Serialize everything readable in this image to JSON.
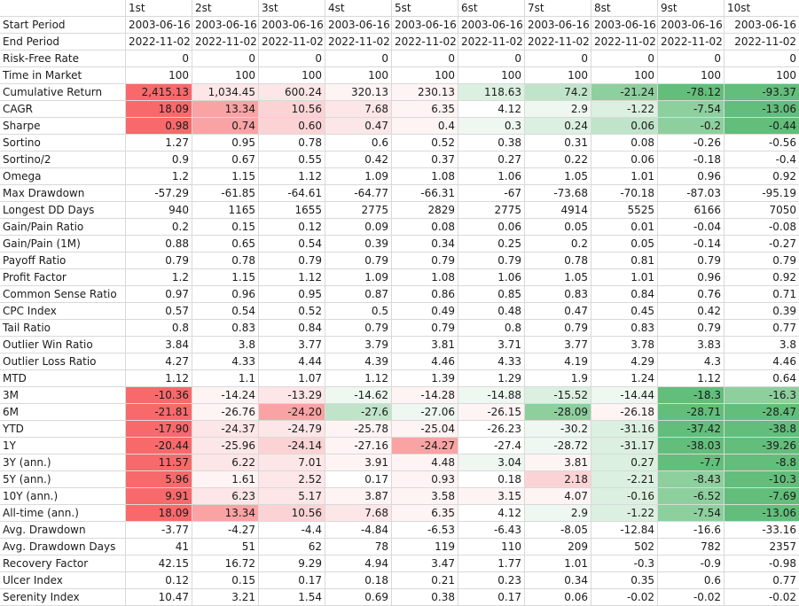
{
  "columns": [
    "",
    "1st",
    "2st",
    "3st",
    "4st",
    "5st",
    "6st",
    "7st",
    "8st",
    "9st",
    "10st"
  ],
  "colors": {
    "r1": "#f8696b",
    "r2": "#f9a3a4",
    "r3": "#fcd3d4",
    "r4": "#fde6e7",
    "r5": "#fef4f4",
    "g1": "#63be7b",
    "g2": "#8ecf9e",
    "g3": "#c0e4ca",
    "g4": "#dcf0e1",
    "g5": "#eef7f0"
  },
  "rows": [
    {
      "label": "Start Period",
      "values": [
        "2003-06-16",
        "2003-06-16",
        "2003-06-16",
        "2003-06-16",
        "2003-06-16",
        "2003-06-16",
        "2003-06-16",
        "2003-06-16",
        "2003-06-16",
        "2003-06-16"
      ]
    },
    {
      "label": "End Period",
      "values": [
        "2022-11-02",
        "2022-11-02",
        "2022-11-02",
        "2022-11-02",
        "2022-11-02",
        "2022-11-02",
        "2022-11-02",
        "2022-11-02",
        "2022-11-02",
        "2022-11-02"
      ]
    },
    {
      "label": "Risk-Free Rate",
      "values": [
        "0",
        "0",
        "0",
        "0",
        "0",
        "0",
        "0",
        "0",
        "0",
        "0"
      ]
    },
    {
      "label": "Time in Market",
      "values": [
        "100",
        "100",
        "100",
        "100",
        "100",
        "100",
        "100",
        "100",
        "100",
        "100"
      ]
    },
    {
      "label": "Cumulative Return",
      "values": [
        "2,415.13",
        "1,034.45",
        "600.24",
        "320.13",
        "230.13",
        "118.63",
        "74.2",
        "-21.24",
        "-78.12",
        "-93.37"
      ],
      "fill": [
        "r1",
        "r4",
        "r4",
        "r5",
        "r5",
        "g4",
        "g3",
        "g2",
        "g1",
        "g1"
      ]
    },
    {
      "label": "CAGR",
      "values": [
        "18.09",
        "13.34",
        "10.56",
        "7.68",
        "6.35",
        "4.12",
        "2.9",
        "-1.22",
        "-7.54",
        "-13.06"
      ],
      "fill": [
        "r1",
        "r2",
        "r3",
        "r4",
        "r5",
        "",
        "g5",
        "g4",
        "g2",
        "g1"
      ]
    },
    {
      "label": "Sharpe",
      "values": [
        "0.98",
        "0.74",
        "0.60",
        "0.47",
        "0.4",
        "0.3",
        "0.24",
        "0.06",
        "-0.2",
        "-0.44"
      ],
      "fill": [
        "r1",
        "r2",
        "r3",
        "r4",
        "r5",
        "g5",
        "g4",
        "g3",
        "g2",
        "g1"
      ]
    },
    {
      "label": "Sortino",
      "values": [
        "1.27",
        "0.95",
        "0.78",
        "0.6",
        "0.52",
        "0.38",
        "0.31",
        "0.08",
        "-0.26",
        "-0.56"
      ]
    },
    {
      "label": "Sortino/2",
      "values": [
        "0.9",
        "0.67",
        "0.55",
        "0.42",
        "0.37",
        "0.27",
        "0.22",
        "0.06",
        "-0.18",
        "-0.4"
      ]
    },
    {
      "label": "Omega",
      "values": [
        "1.2",
        "1.15",
        "1.12",
        "1.09",
        "1.08",
        "1.06",
        "1.05",
        "1.01",
        "0.96",
        "0.92"
      ]
    },
    {
      "label": "Max Drawdown",
      "values": [
        "-57.29",
        "-61.85",
        "-64.61",
        "-64.77",
        "-66.31",
        "-67",
        "-73.68",
        "-70.18",
        "-87.03",
        "-95.19"
      ]
    },
    {
      "label": "Longest DD Days",
      "values": [
        "940",
        "1165",
        "1655",
        "2775",
        "2829",
        "2775",
        "4914",
        "5525",
        "6166",
        "7050"
      ]
    },
    {
      "label": "Gain/Pain Ratio",
      "values": [
        "0.2",
        "0.15",
        "0.12",
        "0.09",
        "0.08",
        "0.06",
        "0.05",
        "0.01",
        "-0.04",
        "-0.08"
      ]
    },
    {
      "label": "Gain/Pain (1M)",
      "values": [
        "0.88",
        "0.65",
        "0.54",
        "0.39",
        "0.34",
        "0.25",
        "0.2",
        "0.05",
        "-0.14",
        "-0.27"
      ]
    },
    {
      "label": "Payoff Ratio",
      "values": [
        "0.79",
        "0.78",
        "0.79",
        "0.79",
        "0.79",
        "0.79",
        "0.78",
        "0.81",
        "0.79",
        "0.79"
      ]
    },
    {
      "label": "Profit Factor",
      "values": [
        "1.2",
        "1.15",
        "1.12",
        "1.09",
        "1.08",
        "1.06",
        "1.05",
        "1.01",
        "0.96",
        "0.92"
      ]
    },
    {
      "label": "Common Sense Ratio",
      "values": [
        "0.97",
        "0.96",
        "0.95",
        "0.87",
        "0.86",
        "0.85",
        "0.83",
        "0.84",
        "0.76",
        "0.71"
      ]
    },
    {
      "label": "CPC Index",
      "values": [
        "0.57",
        "0.54",
        "0.52",
        "0.5",
        "0.49",
        "0.48",
        "0.47",
        "0.45",
        "0.42",
        "0.39"
      ]
    },
    {
      "label": "Tail Ratio",
      "values": [
        "0.8",
        "0.83",
        "0.84",
        "0.79",
        "0.79",
        "0.8",
        "0.79",
        "0.83",
        "0.79",
        "0.77"
      ]
    },
    {
      "label": "Outlier Win Ratio",
      "values": [
        "3.84",
        "3.8",
        "3.77",
        "3.79",
        "3.81",
        "3.71",
        "3.77",
        "3.78",
        "3.83",
        "3.8"
      ]
    },
    {
      "label": "Outlier Loss Ratio",
      "values": [
        "4.27",
        "4.33",
        "4.44",
        "4.39",
        "4.46",
        "4.33",
        "4.19",
        "4.29",
        "4.3",
        "4.46"
      ]
    },
    {
      "label": "MTD",
      "values": [
        "1.12",
        "1.1",
        "1.07",
        "1.12",
        "1.39",
        "1.29",
        "1.9",
        "1.24",
        "1.12",
        "0.64"
      ]
    },
    {
      "label": "3M",
      "values": [
        "-10.36",
        "-14.24",
        "-13.29",
        "-14.62",
        "-14.28",
        "-14.88",
        "-15.52",
        "-14.44",
        "-18.3",
        "-16.3"
      ],
      "fill": [
        "r1",
        "r5",
        "r4",
        "g5",
        "r5",
        "g5",
        "g4",
        "g5",
        "g1",
        "g2"
      ]
    },
    {
      "label": "6M",
      "values": [
        "-21.81",
        "-26.76",
        "-24.20",
        "-27.6",
        "-27.06",
        "-26.15",
        "-28.09",
        "-26.18",
        "-28.71",
        "-28.47"
      ],
      "fill": [
        "r1",
        "r5",
        "r2",
        "g3",
        "g5",
        "r5",
        "g2",
        "r5",
        "g1",
        "g1"
      ]
    },
    {
      "label": "YTD",
      "values": [
        "-17.90",
        "-24.37",
        "-24.79",
        "-25.78",
        "-25.04",
        "-26.23",
        "-30.2",
        "-31.16",
        "-37.42",
        "-38.8"
      ],
      "fill": [
        "r1",
        "r4",
        "r4",
        "r5",
        "r5",
        "",
        "g5",
        "g4",
        "g1",
        "g1"
      ]
    },
    {
      "label": "1Y",
      "values": [
        "-20.44",
        "-25.96",
        "-24.14",
        "-27.16",
        "-24.27",
        "-27.4",
        "-28.72",
        "-31.17",
        "-38.03",
        "-39.26"
      ],
      "fill": [
        "r1",
        "r4",
        "r3",
        "r5",
        "r2",
        "",
        "g5",
        "g4",
        "g1",
        "g1"
      ]
    },
    {
      "label": "3Y (ann.)",
      "values": [
        "11.57",
        "6.22",
        "7.01",
        "3.91",
        "4.48",
        "3.04",
        "3.81",
        "0.27",
        "-7.7",
        "-8.8"
      ],
      "fill": [
        "r1",
        "r4",
        "r4",
        "r5",
        "r5",
        "g5",
        "r5",
        "g4",
        "g1",
        "g1"
      ]
    },
    {
      "label": "5Y (ann.)",
      "values": [
        "5.96",
        "1.61",
        "2.52",
        "0.17",
        "0.93",
        "0.18",
        "2.18",
        "-2.21",
        "-8.43",
        "-10.3"
      ],
      "fill": [
        "r1",
        "r5",
        "r4",
        "",
        "r5",
        "",
        "r3",
        "g4",
        "g2",
        "g1"
      ]
    },
    {
      "label": "10Y (ann.)",
      "values": [
        "9.91",
        "6.23",
        "5.17",
        "3.87",
        "3.58",
        "3.15",
        "4.07",
        "-0.16",
        "-6.52",
        "-7.69"
      ],
      "fill": [
        "r1",
        "r4",
        "r4",
        "r5",
        "r5",
        "r5",
        "r5",
        "g4",
        "g2",
        "g1"
      ]
    },
    {
      "label": "All-time (ann.)",
      "values": [
        "18.09",
        "13.34",
        "10.56",
        "7.68",
        "6.35",
        "4.12",
        "2.9",
        "-1.22",
        "-7.54",
        "-13.06"
      ],
      "fill": [
        "r1",
        "r2",
        "r3",
        "r4",
        "r5",
        "",
        "g5",
        "g4",
        "g2",
        "g1"
      ]
    },
    {
      "label": "Avg. Drawdown",
      "values": [
        "-3.77",
        "-4.27",
        "-4.4",
        "-4.84",
        "-6.53",
        "-6.43",
        "-8.05",
        "-12.84",
        "-16.6",
        "-33.16"
      ]
    },
    {
      "label": "Avg. Drawdown Days",
      "values": [
        "41",
        "51",
        "62",
        "78",
        "119",
        "110",
        "209",
        "502",
        "782",
        "2357"
      ]
    },
    {
      "label": "Recovery Factor",
      "values": [
        "42.15",
        "16.72",
        "9.29",
        "4.94",
        "3.47",
        "1.77",
        "1.01",
        "-0.3",
        "-0.9",
        "-0.98"
      ]
    },
    {
      "label": "Ulcer Index",
      "values": [
        "0.12",
        "0.15",
        "0.17",
        "0.18",
        "0.21",
        "0.23",
        "0.34",
        "0.35",
        "0.6",
        "0.77"
      ]
    },
    {
      "label": "Serenity Index",
      "values": [
        "10.47",
        "3.21",
        "1.54",
        "0.69",
        "0.38",
        "0.17",
        "0.06",
        "-0.02",
        "-0.02",
        "-0.02"
      ]
    }
  ]
}
